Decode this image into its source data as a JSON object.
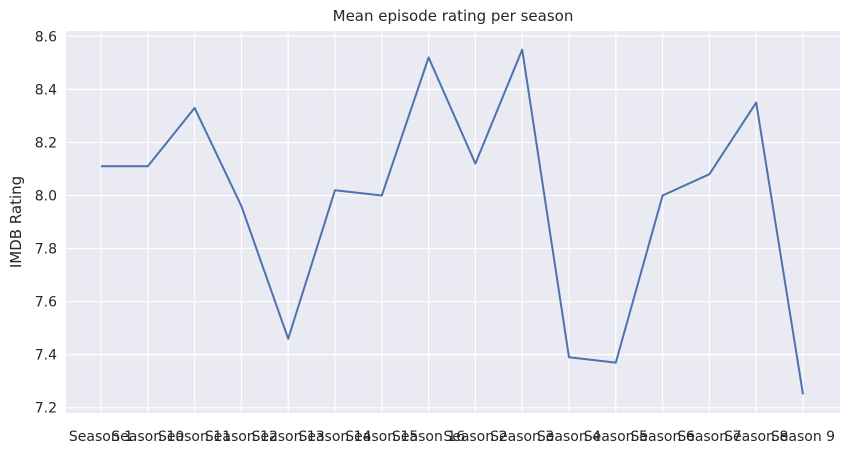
{
  "chart_data": {
    "type": "line",
    "title": "Mean episode rating per season",
    "xlabel": "",
    "ylabel": "IMDB Rating",
    "categories": [
      "Season 1",
      "Season 10",
      "Season 11",
      "Season 12",
      "Season 13",
      "Season 14",
      "Season 15",
      "Season 16",
      "Season 2",
      "Season 3",
      "Season 4",
      "Season 5",
      "Season 6",
      "Season 7",
      "Season 8",
      "Season 9"
    ],
    "series": [
      {
        "values": [
          8.11,
          8.11,
          8.33,
          7.96,
          7.46,
          8.02,
          8.0,
          8.52,
          8.12,
          8.55,
          7.39,
          7.37,
          8.0,
          8.08,
          8.35,
          7.25
        ]
      }
    ],
    "ylim": [
      7.18,
      8.62
    ],
    "yticks": [
      7.2,
      7.4,
      7.6,
      7.8,
      8.0,
      8.2,
      8.4,
      8.6
    ],
    "grid": true,
    "color": "#4c72b0",
    "background": "#eaeaf2"
  }
}
